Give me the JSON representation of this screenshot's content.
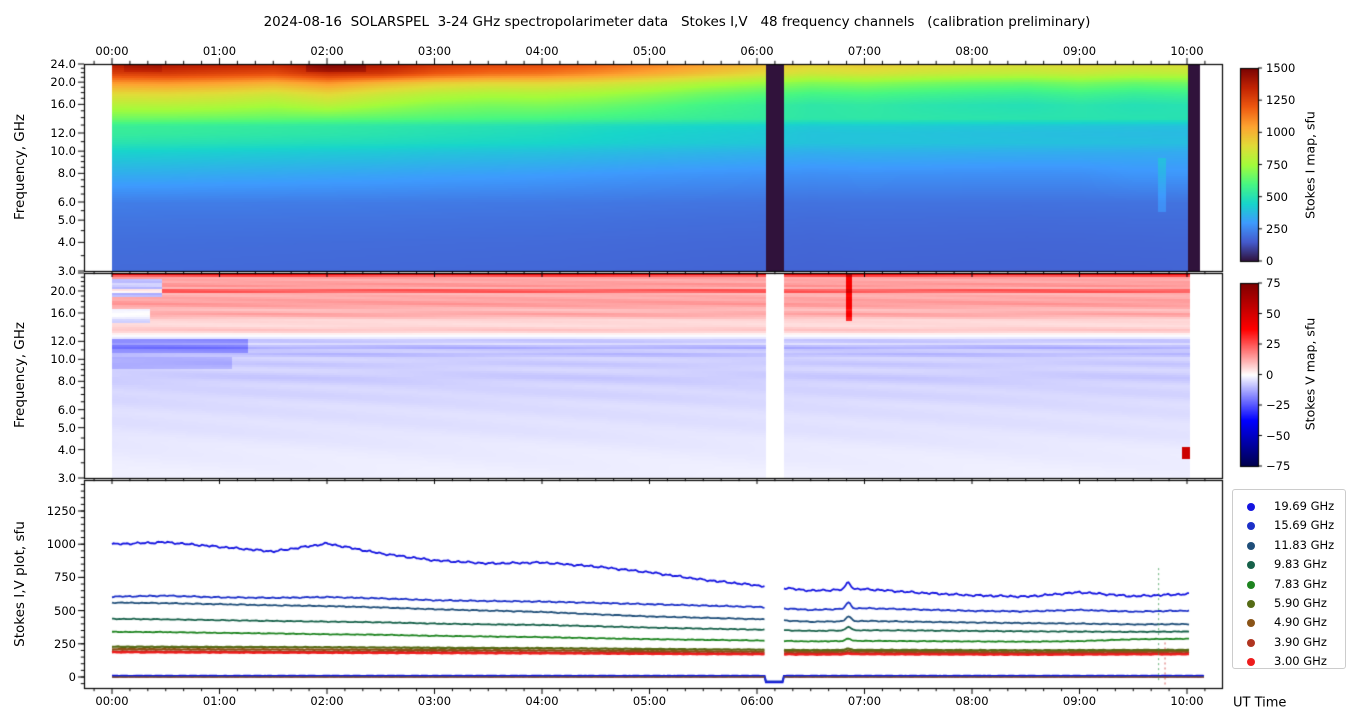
{
  "title": "2024-08-16  SOLARSPEL  3-24 GHz spectropolarimeter data   Stokes I,V   48 frequency channels   (calibration preliminary)",
  "axes": {
    "x_tick_labels": [
      "00:00",
      "01:00",
      "02:00",
      "03:00",
      "04:00",
      "05:00",
      "06:00",
      "07:00",
      "08:00",
      "09:00",
      "10:00"
    ],
    "x_label": "UT Time",
    "freq_label": "Frequency, GHz",
    "freq_tick_labels": [
      "24.0",
      "20.0",
      "16.0",
      "12.0",
      "10.0",
      "8.0",
      "6.0",
      "5.0",
      "4.0",
      "3.0"
    ],
    "freq_tick_values": [
      24,
      20,
      16,
      12,
      10,
      8,
      6,
      5,
      4,
      3
    ],
    "freq_minor_ticks": [
      23,
      22,
      21,
      19,
      18,
      17,
      15,
      14,
      13,
      11,
      9.5,
      9,
      8.5,
      7.5,
      7,
      6.5,
      5.5,
      4.5,
      3.5
    ],
    "bottom_label": "Stokes I,V plot, sfu",
    "bottom_tick_labels": [
      "0",
      "250",
      "500",
      "750",
      "1000",
      "1250"
    ],
    "bottom_tick_values": [
      0,
      250,
      500,
      750,
      1000,
      1250
    ]
  },
  "colorbars": [
    {
      "label": "Stokes I map, sfu",
      "cmap": "turbo",
      "vmin": 0,
      "vmax": 1500,
      "tick_labels": [
        "0",
        "250",
        "500",
        "750",
        "1000",
        "1250",
        "1500"
      ],
      "tick_values": [
        0,
        250,
        500,
        750,
        1000,
        1250,
        1500
      ]
    },
    {
      "label": "Stokes V map, sfu",
      "cmap": "seismic",
      "vmin": -75,
      "vmax": 75,
      "tick_labels": [
        "75",
        "50",
        "25",
        "0",
        "−25",
        "−50",
        "−75"
      ],
      "tick_values": [
        75,
        50,
        25,
        0,
        -25,
        -50,
        -75
      ]
    }
  ],
  "legend": {
    "items": [
      {
        "label": "19.69 GHz",
        "color": "#1414e0"
      },
      {
        "label": "15.69 GHz",
        "color": "#1c30c8"
      },
      {
        "label": "11.83 GHz",
        "color": "#1f4e79"
      },
      {
        "label": "9.83 GHz",
        "color": "#17614a"
      },
      {
        "label": "7.83 GHz",
        "color": "#1e8420"
      },
      {
        "label": "5.90 GHz",
        "color": "#556b15"
      },
      {
        "label": "4.90 GHz",
        "color": "#8a5418"
      },
      {
        "label": "3.90 GHz",
        "color": "#b03520"
      },
      {
        "label": "3.00 GHz",
        "color": "#ee1c1c"
      }
    ]
  },
  "chart_data": [
    {
      "type": "heatmap",
      "name": "stokes_i_map",
      "units": "sfu",
      "vmin": 0,
      "vmax": 1500,
      "cmap": "turbo",
      "x_range_hours": [
        0,
        10.12
      ],
      "y_range_ghz": [
        3,
        24
      ],
      "y_scale": "log",
      "time_hours": [
        0,
        0.5,
        1,
        1.5,
        2,
        2.5,
        3,
        3.5,
        4,
        4.5,
        5,
        5.5,
        6,
        6.5,
        7,
        7.5,
        8,
        8.5,
        9,
        9.5,
        10
      ],
      "freqs_ghz": [
        24,
        22,
        20,
        18,
        16,
        14,
        13,
        12,
        11,
        10,
        8,
        6,
        5,
        4,
        3
      ],
      "values": [
        [
          1380,
          1395,
          1360,
          1335,
          1425,
          1395,
          1300,
          1255,
          1235,
          1185,
          1120,
          1050,
          985,
          925,
          945,
          915,
          895,
          885,
          905,
          875,
          885
        ],
        [
          1270,
          1285,
          1255,
          1230,
          1320,
          1290,
          1205,
          1160,
          1140,
          1090,
          1030,
          968,
          905,
          852,
          870,
          842,
          822,
          812,
          832,
          802,
          812
        ],
        [
          1065,
          1075,
          1050,
          1012,
          1078,
          1000,
          940,
          912,
          916,
          886,
          840,
          782,
          740,
          692,
          706,
          680,
          662,
          652,
          680,
          652,
          666
        ],
        [
          905,
          912,
          892,
          862,
          915,
          852,
          800,
          776,
          782,
          756,
          716,
          666,
          630,
          592,
          602,
          582,
          566,
          556,
          582,
          556,
          570
        ],
        [
          792,
          796,
          782,
          756,
          800,
          746,
          700,
          680,
          686,
          662,
          626,
          586,
          556,
          522,
          532,
          512,
          500,
          492,
          512,
          492,
          502
        ],
        [
          662,
          660,
          652,
          642,
          636,
          626,
          612,
          602,
          596,
          582,
          566,
          552,
          542,
          522,
          526,
          522,
          516,
          512,
          510,
          506,
          502
        ],
        [
          556,
          552,
          545,
          538,
          532,
          522,
          510,
          500,
          492,
          474,
          460,
          450,
          440,
          420,
          424,
          420,
          414,
          410,
          404,
          400,
          396
        ],
        [
          545,
          540,
          532,
          524,
          518,
          508,
          494,
          484,
          474,
          456,
          442,
          432,
          422,
          402,
          406,
          402,
          396,
          392,
          388,
          384,
          380
        ],
        [
          508,
          503,
          497,
          491,
          485,
          479,
          469,
          461,
          455,
          443,
          431,
          423,
          415,
          403,
          407,
          405,
          401,
          399,
          397,
          395,
          391
        ],
        [
          442,
          438,
          432,
          426,
          420,
          416,
          406,
          400,
          396,
          386,
          376,
          368,
          360,
          350,
          356,
          354,
          350,
          348,
          346,
          344,
          340
        ],
        [
          346,
          344,
          338,
          334,
          328,
          324,
          316,
          312,
          306,
          298,
          290,
          285,
          280,
          273,
          277,
          275,
          273,
          271,
          273,
          289,
          291
        ],
        [
          232,
          231,
          230,
          229,
          228,
          226,
          224,
          222,
          221,
          218,
          215,
          212,
          210,
          206,
          208,
          207,
          206,
          205,
          206,
          207,
          208
        ],
        [
          212,
          211,
          210,
          209,
          208,
          207,
          205,
          203,
          202,
          200,
          197,
          195,
          193,
          190,
          192,
          191,
          190,
          189,
          190,
          191,
          192
        ],
        [
          196,
          195,
          194,
          193,
          192,
          191,
          190,
          189,
          188,
          186,
          184,
          182,
          181,
          178,
          180,
          179,
          178,
          177,
          178,
          179,
          180
        ],
        [
          188,
          187,
          186,
          185,
          184,
          183,
          182,
          181,
          180,
          178,
          176,
          174,
          173,
          171,
          173,
          172,
          171,
          170,
          171,
          172,
          173
        ]
      ],
      "anomalies": [
        {
          "t0": 1.8,
          "t1": 2.35,
          "f0": 22.3,
          "f1": 24,
          "dv": 70
        },
        {
          "t0": 0.1,
          "t1": 0.45,
          "f0": 22.5,
          "f1": 24,
          "dv": 40
        },
        {
          "t0": 9.72,
          "t1": 9.8,
          "f0": 5.5,
          "f1": 9.5,
          "dv": 70
        }
      ],
      "data_gap_hours": [
        6.08,
        6.25
      ],
      "dark_column_hours": [
        10.0,
        10.12
      ]
    },
    {
      "type": "heatmap",
      "name": "stokes_v_map",
      "units": "sfu",
      "vmin": -75,
      "vmax": 75,
      "cmap": "seismic",
      "x_range_hours": [
        0,
        10.02
      ],
      "y_range_ghz": [
        3,
        24
      ],
      "y_scale": "log",
      "freq_profile": [
        [
          24,
          42
        ],
        [
          23.2,
          14
        ],
        [
          22.4,
          12
        ],
        [
          21.4,
          16
        ],
        [
          20.8,
          12
        ],
        [
          20.2,
          30
        ],
        [
          19.6,
          11
        ],
        [
          18.6,
          13
        ],
        [
          17.6,
          15
        ],
        [
          16.6,
          9
        ],
        [
          15.9,
          14
        ],
        [
          15.1,
          6
        ],
        [
          14.2,
          5
        ],
        [
          13.5,
          9
        ],
        [
          13,
          1
        ],
        [
          12.6,
          -2
        ],
        [
          12.2,
          -10
        ],
        [
          11.8,
          -5
        ],
        [
          11.4,
          -13
        ],
        [
          11,
          -6
        ],
        [
          10.6,
          -11
        ],
        [
          10.2,
          -6
        ],
        [
          9.6,
          -8
        ],
        [
          9.1,
          -6
        ],
        [
          8.4,
          -8
        ],
        [
          7.7,
          -6
        ],
        [
          7,
          -6
        ],
        [
          6.3,
          -5
        ],
        [
          5.5,
          -4.5
        ],
        [
          4.8,
          -4
        ],
        [
          4,
          -3
        ],
        [
          3.4,
          -2.5
        ],
        [
          3,
          -2
        ]
      ],
      "anomalies": [
        {
          "t0": 0,
          "t1": 0.45,
          "f0": 19,
          "f1": 22.8,
          "dv": -22
        },
        {
          "t0": 0,
          "t1": 0.35,
          "f0": 14.6,
          "f1": 16.8,
          "dv": -12
        },
        {
          "t0": 0,
          "t1": 1.25,
          "f0": 10.8,
          "f1": 12.4,
          "dv": -9
        },
        {
          "t0": 0,
          "t1": 1.1,
          "f0": 9.2,
          "f1": 10.3,
          "dv": -5
        },
        {
          "t0": 6.82,
          "t1": 6.88,
          "f0": 15,
          "f1": 24,
          "dv": 26
        },
        {
          "t0": 9.95,
          "t1": 10.02,
          "f0": 3.7,
          "f1": 4.15,
          "dv": 55
        }
      ],
      "data_gap_hours": [
        6.08,
        6.25
      ]
    },
    {
      "type": "line",
      "name": "stokes_iv_plot",
      "units": "sfu",
      "x_range_hours": [
        0,
        10.03
      ],
      "ylim": [
        -83,
        1483
      ],
      "time_hours": [
        0,
        0.5,
        1,
        1.5,
        2,
        2.5,
        3,
        3.5,
        4,
        4.5,
        5,
        5.5,
        6,
        6.5,
        7,
        7.5,
        8,
        8.5,
        9,
        9.5,
        10
      ],
      "series": [
        {
          "name": "19.69 GHz",
          "color": "#1414e0",
          "noise": 9,
          "spike": 55,
          "width": 1.8,
          "values": [
            1000,
            1015,
            980,
            945,
            1005,
            930,
            878,
            855,
            862,
            832,
            788,
            732,
            690,
            650,
            662,
            635,
            615,
            605,
            638,
            608,
            625
          ]
        },
        {
          "name": "15.69 GHz",
          "color": "#1c30c8",
          "noise": 5,
          "spike": 45,
          "width": 1.8,
          "values": [
            605,
            612,
            600,
            596,
            602,
            592,
            578,
            572,
            568,
            558,
            548,
            538,
            528,
            505,
            518,
            508,
            498,
            494,
            505,
            492,
            500
          ]
        },
        {
          "name": "11.83 GHz",
          "color": "#1f4e79",
          "noise": 4,
          "spike": 35,
          "width": 1.8,
          "values": [
            560,
            556,
            548,
            540,
            534,
            524,
            510,
            500,
            490,
            472,
            456,
            446,
            436,
            416,
            422,
            416,
            410,
            406,
            402,
            396,
            398
          ]
        },
        {
          "name": "9.83 GHz",
          "color": "#17614a",
          "noise": 3.5,
          "spike": 28,
          "width": 1.8,
          "values": [
            438,
            434,
            428,
            422,
            417,
            412,
            402,
            396,
            392,
            382,
            372,
            364,
            357,
            347,
            352,
            350,
            347,
            344,
            342,
            340,
            342
          ]
        },
        {
          "name": "7.83 GHz",
          "color": "#1e8420",
          "noise": 3,
          "spike": 20,
          "width": 1.8,
          "values": [
            340,
            338,
            332,
            328,
            322,
            318,
            310,
            305,
            300,
            292,
            285,
            280,
            275,
            268,
            272,
            270,
            268,
            266,
            270,
            284,
            288
          ]
        },
        {
          "name": "5.90 GHz",
          "color": "#556b15",
          "noise": 2.5,
          "spike": 10,
          "width": 2.2,
          "values": [
            228,
            227,
            226,
            225,
            224,
            222,
            220,
            218,
            217,
            214,
            211,
            208,
            206,
            202,
            204,
            203,
            202,
            201,
            202,
            203,
            204
          ]
        },
        {
          "name": "4.90 GHz",
          "color": "#8a5418",
          "noise": 2.5,
          "spike": 8,
          "width": 2.2,
          "values": [
            210,
            209,
            208,
            207,
            206,
            205,
            203,
            201,
            200,
            198,
            195,
            193,
            191,
            188,
            190,
            189,
            188,
            187,
            188,
            189,
            190
          ]
        },
        {
          "name": "3.90 GHz",
          "color": "#b03520",
          "noise": 2.5,
          "spike": 6,
          "width": 2.2,
          "values": [
            193,
            192,
            191,
            190,
            189,
            188,
            187,
            186,
            185,
            183,
            181,
            179,
            178,
            175,
            177,
            176,
            175,
            174,
            175,
            176,
            177
          ]
        },
        {
          "name": "3.00 GHz",
          "color": "#ee1c1c",
          "noise": 2.5,
          "spike": 6,
          "width": 2.2,
          "values": [
            186,
            185,
            184,
            183,
            182,
            181,
            180,
            179,
            178,
            176,
            174,
            172,
            171,
            169,
            171,
            170,
            169,
            168,
            169,
            170,
            171
          ]
        }
      ],
      "v_zero_lines": [
        {
          "value": 8,
          "color": "#0a0ae0",
          "width": 2.2,
          "gap_dip": -38
        },
        {
          "value": 3,
          "color": "#1c30c8",
          "width": 1.6,
          "gap_dip": -33
        },
        {
          "value": 0,
          "color": "#14664c",
          "width": 1.2,
          "gap_dip": null
        },
        {
          "value": -1,
          "color": "#b03028",
          "width": 1.0,
          "gap_dip": null
        }
      ],
      "zero_line_end_hour": 10.17,
      "data_gap_hours": [
        6.08,
        6.25
      ],
      "spike_hour": 6.85,
      "dotted_marks": [
        {
          "t": 9.73,
          "color": "#3a9a50",
          "v0": 820,
          "v1": -40
        },
        {
          "t": 9.79,
          "color": "#cc3333",
          "v0": 260,
          "v1": -45
        }
      ]
    }
  ]
}
